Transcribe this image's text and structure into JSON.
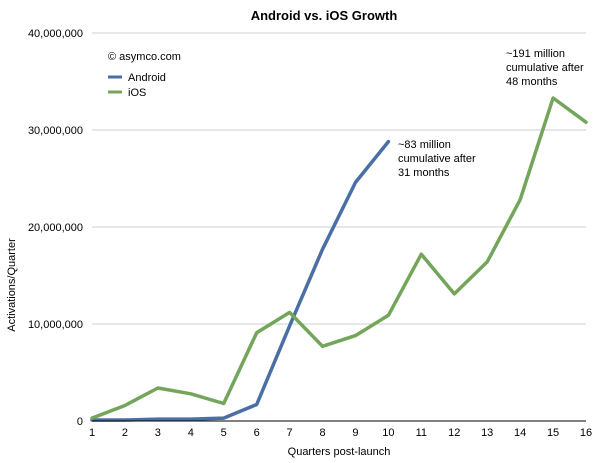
{
  "chart_data": {
    "type": "line",
    "title": "Android vs. iOS Growth",
    "xlabel": "Quarters post-launch",
    "ylabel": "Activations/Quarter",
    "copyright": "© asymco.com",
    "x": [
      1,
      2,
      3,
      4,
      5,
      6,
      7,
      8,
      9,
      10,
      11,
      12,
      13,
      14,
      15,
      16
    ],
    "ylim": [
      0,
      40000000
    ],
    "y_ticks": [
      "0",
      "10,000,000",
      "20,000,000",
      "30,000,000",
      "40,000,000"
    ],
    "y_tick_values": [
      0,
      10000000,
      20000000,
      30000000,
      40000000
    ],
    "x_ticks": [
      "1",
      "2",
      "3",
      "4",
      "5",
      "6",
      "7",
      "8",
      "9",
      "10",
      "11",
      "12",
      "13",
      "14",
      "15",
      "16"
    ],
    "grid": "horizontal",
    "legend_position": "top-left",
    "series": [
      {
        "name": "Android",
        "color": "#4a6fa5",
        "x": [
          1,
          2,
          3,
          4,
          5,
          6,
          7,
          8,
          9,
          10
        ],
        "values": [
          100000,
          100000,
          200000,
          200000,
          300000,
          1700000,
          9800000,
          17700000,
          24600000,
          28800000
        ]
      },
      {
        "name": "iOS",
        "color": "#73a55a",
        "x": [
          1,
          2,
          3,
          4,
          5,
          6,
          7,
          8,
          9,
          10,
          11,
          12,
          13,
          14,
          15,
          16
        ],
        "values": [
          300000,
          1600000,
          3400000,
          2800000,
          1800000,
          9100000,
          11200000,
          7700000,
          8800000,
          10900000,
          17200000,
          13100000,
          16400000,
          22800000,
          33300000,
          30800000
        ]
      }
    ],
    "annotations": [
      {
        "lines": [
          "~83 million",
          "cumulative after",
          "31 months"
        ]
      },
      {
        "lines": [
          "~191 million",
          "cumulative after",
          "48 months"
        ]
      }
    ]
  }
}
